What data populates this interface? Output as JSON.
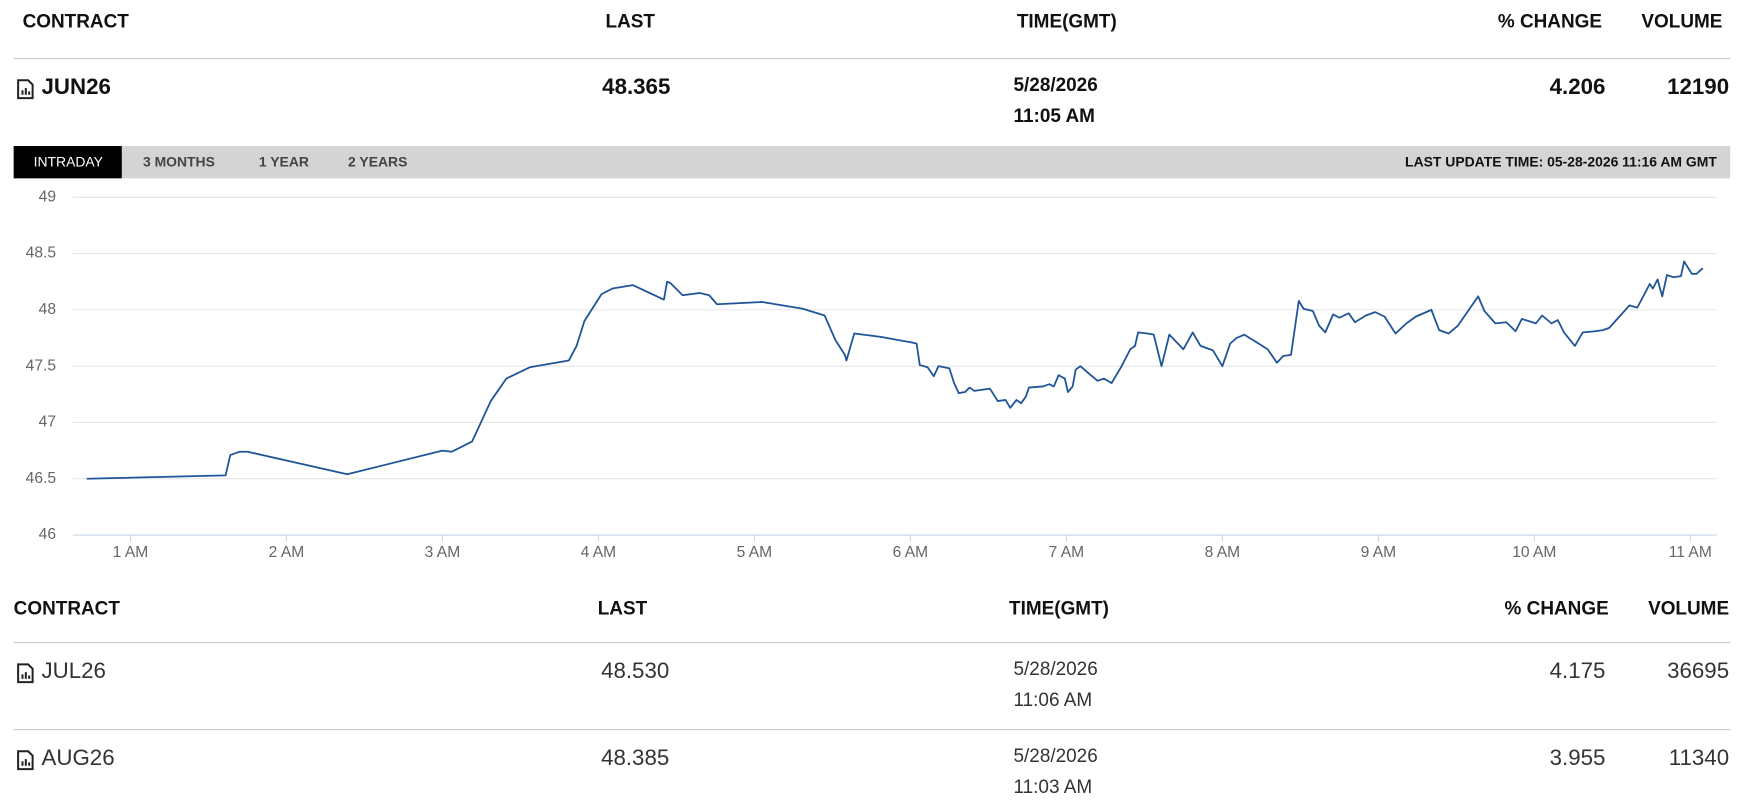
{
  "header": {
    "columns": [
      "CONTRACT",
      "LAST",
      "TIME(GMT)",
      "% CHANGE",
      "VOLUME"
    ]
  },
  "selected": {
    "contract": "JUN26",
    "last": "48.365",
    "date": "5/28/2026",
    "time": "11:05 AM",
    "change": "4.206",
    "volume": "12190"
  },
  "tabs": [
    "INTRADAY",
    "3 MONTHS",
    "1 YEAR",
    "2 YEARS"
  ],
  "last_update": "LAST UPDATE TIME: 05-28-2026 11:16 AM GMT",
  "chart_data": {
    "type": "line",
    "color": "#1f5596",
    "grid": true,
    "xlim": [
      0.63,
      11.17
    ],
    "xticks": [
      {
        "value": 1,
        "label": "1 AM"
      },
      {
        "value": 2,
        "label": "2 AM"
      },
      {
        "value": 3,
        "label": "3 AM"
      },
      {
        "value": 4,
        "label": "4 AM"
      },
      {
        "value": 5,
        "label": "5 AM"
      },
      {
        "value": 6,
        "label": "6 AM"
      },
      {
        "value": 7,
        "label": "7 AM"
      },
      {
        "value": 8,
        "label": "8 AM"
      },
      {
        "value": 9,
        "label": "9 AM"
      },
      {
        "value": 10,
        "label": "10 AM"
      },
      {
        "value": 11,
        "label": "11 AM"
      }
    ],
    "ylim": [
      46,
      49
    ],
    "yticks": [
      46,
      46.5,
      47,
      47.5,
      48,
      48.5,
      49
    ],
    "x": [
      0.72,
      1.61,
      1.64,
      1.7,
      1.75,
      2.39,
      3.0,
      3.06,
      3.19,
      3.31,
      3.41,
      3.56,
      3.81,
      3.86,
      3.91,
      4.02,
      4.09,
      4.22,
      4.42,
      4.44,
      4.46,
      4.54,
      4.65,
      4.71,
      4.76,
      5.05,
      5.31,
      5.45,
      5.52,
      5.58,
      5.59,
      5.64,
      5.81,
      6.01,
      6.04,
      6.06,
      6.11,
      6.15,
      6.18,
      6.25,
      6.28,
      6.31,
      6.35,
      6.38,
      6.41,
      6.51,
      6.56,
      6.61,
      6.64,
      6.68,
      6.71,
      6.74,
      6.76,
      6.85,
      6.89,
      6.92,
      6.95,
      6.99,
      7.01,
      7.04,
      7.06,
      7.09,
      7.14,
      7.2,
      7.24,
      7.29,
      7.35,
      7.41,
      7.44,
      7.46,
      7.52,
      7.56,
      7.61,
      7.66,
      7.75,
      7.81,
      7.86,
      7.94,
      8.0,
      8.05,
      8.09,
      8.14,
      8.21,
      8.29,
      8.35,
      8.39,
      8.44,
      8.49,
      8.52,
      8.58,
      8.62,
      8.66,
      8.71,
      8.75,
      8.81,
      8.85,
      8.92,
      8.98,
      9.04,
      9.11,
      9.18,
      9.24,
      9.34,
      9.39,
      9.45,
      9.51,
      9.58,
      9.64,
      9.68,
      9.75,
      9.82,
      9.88,
      9.92,
      10.01,
      10.05,
      10.11,
      10.15,
      10.19,
      10.26,
      10.31,
      10.39,
      10.44,
      10.48,
      10.61,
      10.66,
      10.74,
      10.76,
      10.79,
      10.82,
      10.85,
      10.89,
      10.94,
      10.96,
      11.01,
      11.04,
      11.08
    ],
    "values": [
      46.5,
      46.53,
      46.71,
      46.74,
      46.74,
      46.54,
      46.75,
      46.74,
      46.83,
      47.19,
      47.39,
      47.49,
      47.55,
      47.68,
      47.9,
      48.14,
      48.19,
      48.22,
      48.09,
      48.25,
      48.24,
      48.13,
      48.15,
      48.13,
      48.05,
      48.07,
      48.01,
      47.95,
      47.73,
      47.6,
      47.55,
      47.79,
      47.76,
      47.71,
      47.7,
      47.51,
      47.49,
      47.41,
      47.5,
      47.48,
      47.35,
      47.26,
      47.27,
      47.31,
      47.28,
      47.3,
      47.19,
      47.2,
      47.13,
      47.2,
      47.17,
      47.23,
      47.31,
      47.32,
      47.34,
      47.32,
      47.42,
      47.39,
      47.27,
      47.32,
      47.47,
      47.5,
      47.44,
      47.37,
      47.39,
      47.35,
      47.49,
      47.65,
      47.68,
      47.8,
      47.79,
      47.78,
      47.5,
      47.78,
      47.65,
      47.8,
      47.68,
      47.64,
      47.5,
      47.7,
      47.75,
      47.78,
      47.72,
      47.65,
      47.53,
      47.59,
      47.6,
      48.08,
      48.01,
      47.99,
      47.86,
      47.8,
      47.96,
      47.93,
      47.97,
      47.89,
      47.95,
      47.98,
      47.94,
      47.79,
      47.88,
      47.94,
      48.0,
      47.82,
      47.79,
      47.86,
      48.0,
      48.12,
      47.99,
      47.88,
      47.89,
      47.81,
      47.92,
      47.88,
      47.95,
      47.88,
      47.91,
      47.8,
      47.68,
      47.8,
      47.81,
      47.82,
      47.84,
      48.04,
      48.02,
      48.23,
      48.19,
      48.27,
      48.12,
      48.31,
      48.29,
      48.3,
      48.43,
      48.32,
      48.32,
      48.37
    ]
  },
  "table": {
    "columns": [
      "CONTRACT",
      "LAST",
      "TIME(GMT)",
      "% CHANGE",
      "VOLUME"
    ],
    "rows": [
      {
        "contract": "JUL26",
        "last": "48.530",
        "date": "5/28/2026",
        "time": "11:06 AM",
        "change": "4.175",
        "volume": "36695"
      },
      {
        "contract": "AUG26",
        "last": "48.385",
        "date": "5/28/2026",
        "time": "11:03 AM",
        "change": "3.955",
        "volume": "11340"
      }
    ]
  }
}
